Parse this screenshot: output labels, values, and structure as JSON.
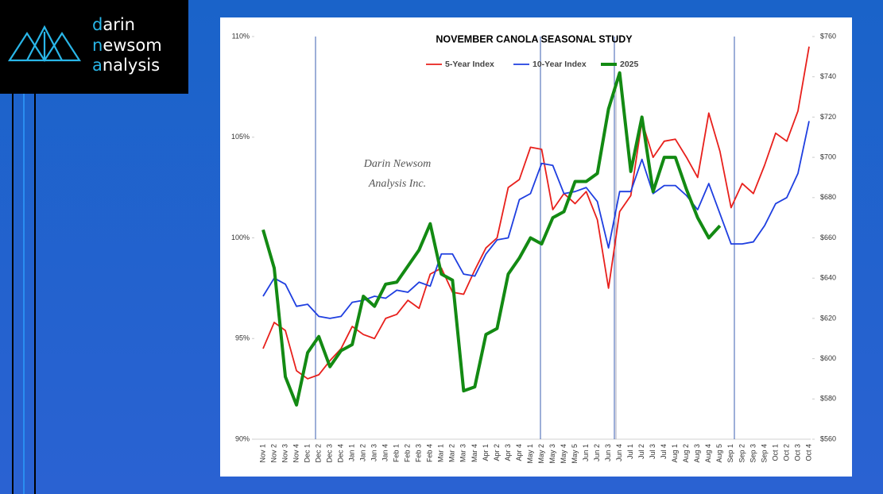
{
  "logo": {
    "lines": [
      "darin",
      "newsom",
      "analysis"
    ]
  },
  "chart_data": {
    "type": "line",
    "title": "NOVEMBER CANOLA SEASONAL STUDY",
    "watermark": [
      "Darin Newsom",
      "Analysis Inc."
    ],
    "categories": [
      "Nov 1",
      "Nov 2",
      "Nov 3",
      "Nov 4",
      "Dec 1",
      "Dec 2",
      "Dec 3",
      "Dec 4",
      "Jan 1",
      "Jan 2",
      "Jan 3",
      "Jan 4",
      "Feb 1",
      "Feb 2",
      "Feb 3",
      "Feb 4",
      "Mar 1",
      "Mar 2",
      "Mar 3",
      "Mar 4",
      "Apr 1",
      "Apr 2",
      "Apr 3",
      "Apr 4",
      "May 1",
      "May 2",
      "May 3",
      "May 4",
      "May 5",
      "Jun 1",
      "Jun 2",
      "Jun 3",
      "Jun 4",
      "Jul 1",
      "Jul 2",
      "Jul 3",
      "Jul 4",
      "Aug 1",
      "Aug 2",
      "Aug 3",
      "Aug 4",
      "Aug 5",
      "Sep 1",
      "Sep 2",
      "Sep 3",
      "Sep 4",
      "Oct 1",
      "Oct 2",
      "Oct 3",
      "Oct 4"
    ],
    "series": [
      {
        "name": "5-Year Index",
        "color": "#e8201c",
        "width": 1.8,
        "axis": "y",
        "values": [
          94.5,
          95.8,
          95.4,
          93.4,
          93.0,
          93.2,
          93.9,
          94.5,
          95.6,
          95.2,
          95.0,
          96.0,
          96.2,
          96.9,
          96.5,
          98.2,
          98.5,
          97.3,
          97.2,
          98.4,
          99.5,
          100.0,
          102.5,
          102.9,
          104.5,
          104.4,
          101.4,
          102.2,
          101.7,
          102.3,
          100.9,
          97.5,
          101.3,
          102.1,
          105.8,
          104.0,
          104.8,
          104.9,
          104.0,
          103.0,
          106.2,
          104.3,
          101.5,
          102.7,
          102.2,
          103.6,
          105.2,
          104.8,
          106.3,
          109.5
        ]
      },
      {
        "name": "10-Year Index",
        "color": "#1f3fe0",
        "width": 1.8,
        "axis": "y",
        "values": [
          97.1,
          98.0,
          97.7,
          96.6,
          96.7,
          96.1,
          96.0,
          96.1,
          96.8,
          96.9,
          97.1,
          97.0,
          97.4,
          97.3,
          97.8,
          97.6,
          99.2,
          99.2,
          98.2,
          98.1,
          99.2,
          99.9,
          100.0,
          101.9,
          102.2,
          103.7,
          103.6,
          102.2,
          102.3,
          102.5,
          101.8,
          99.5,
          102.3,
          102.3,
          103.9,
          102.2,
          102.6,
          102.6,
          102.1,
          101.4,
          102.7,
          101.2,
          99.7,
          99.7,
          99.8,
          100.6,
          101.7,
          102.0,
          103.2,
          105.8
        ]
      },
      {
        "name": "2025",
        "color": "#138a13",
        "width": 4,
        "axis": "y2",
        "values": [
          664,
          645,
          591,
          577,
          603,
          611,
          596,
          604,
          607,
          631,
          626,
          637,
          638,
          646,
          654,
          667,
          642,
          639,
          584,
          586,
          612,
          615,
          642,
          650,
          660,
          657,
          670,
          673,
          688,
          688,
          692,
          724,
          742,
          693,
          720,
          683,
          700,
          700,
          684,
          670,
          660,
          666,
          null,
          null,
          null,
          null,
          null,
          null,
          null,
          null
        ]
      }
    ],
    "ylim": [
      90,
      110
    ],
    "yticks": [
      {
        "value": 90,
        "label": "90%"
      },
      {
        "value": 95,
        "label": "95%"
      },
      {
        "value": 100,
        "label": "100%"
      },
      {
        "value": 105,
        "label": "105%"
      },
      {
        "value": 110,
        "label": "110%"
      }
    ],
    "y2lim": [
      560,
      760
    ],
    "y2ticks": [
      {
        "value": 560,
        "label": "$560"
      },
      {
        "value": 580,
        "label": "$580"
      },
      {
        "value": 600,
        "label": "$600"
      },
      {
        "value": 620,
        "label": "$620"
      },
      {
        "value": 640,
        "label": "$640"
      },
      {
        "value": 660,
        "label": "$660"
      },
      {
        "value": 680,
        "label": "$680"
      },
      {
        "value": 700,
        "label": "$700"
      },
      {
        "value": 720,
        "label": "$720"
      },
      {
        "value": 740,
        "label": "$740"
      },
      {
        "value": 760,
        "label": "$760"
      }
    ],
    "grid": false,
    "legend": "top"
  }
}
